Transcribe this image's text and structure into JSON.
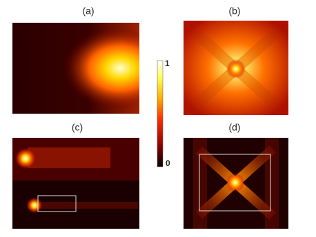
{
  "panels": [
    {
      "label": "(a)"
    },
    {
      "label": "(b)"
    },
    {
      "label": "(c)"
    },
    {
      "label": "(d)"
    }
  ],
  "colorbar": {
    "max": 1,
    "min": 0
  }
}
